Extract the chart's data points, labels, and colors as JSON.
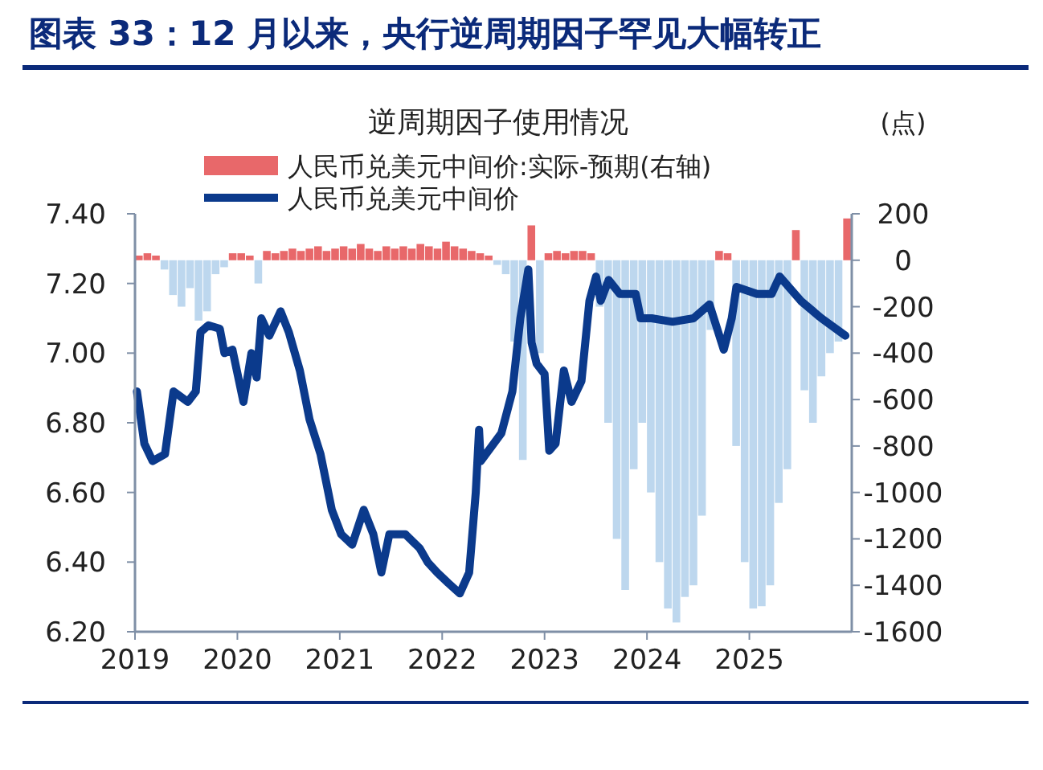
{
  "chart_data": {
    "type": "line",
    "title": "图表 33：12 月以来，央行逆周期因子罕见大幅转正",
    "subtitle": "逆周期因子使用情况",
    "y2label": "(点)",
    "legend": "top",
    "xlim": [
      "2019-01-01",
      "2026-01-01"
    ],
    "xticks": [
      {
        "value": "2019",
        "label": "2019"
      },
      {
        "value": "2020",
        "label": "2020"
      },
      {
        "value": "2021",
        "label": "2021"
      },
      {
        "value": "2022",
        "label": "2022"
      },
      {
        "value": "2023",
        "label": "2023"
      },
      {
        "value": "2024",
        "label": "2024"
      },
      {
        "value": "2025",
        "label": "2025"
      }
    ],
    "ylim": [
      6.2,
      7.4
    ],
    "yticks": [
      {
        "value": 6.2,
        "label": "6.20"
      },
      {
        "value": 6.4,
        "label": "6.40"
      },
      {
        "value": 6.6,
        "label": "6.60"
      },
      {
        "value": 6.8,
        "label": "6.80"
      },
      {
        "value": 7.0,
        "label": "7.00"
      },
      {
        "value": 7.2,
        "label": "7.20"
      },
      {
        "value": 7.4,
        "label": "7.40"
      }
    ],
    "y2lim": [
      -1600,
      200
    ],
    "y2ticks": [
      200,
      0,
      -200,
      -400,
      -600,
      -800,
      -1000,
      -1200,
      -1400,
      -1600
    ],
    "series": [
      {
        "name": "人民币兑美元中间价:实际-预期(右轴)",
        "type": "bar",
        "axis": "y2",
        "color": "#e8686a",
        "x": [
          "2019-01",
          "2019-02",
          "2019-03",
          "2019-04",
          "2019-05",
          "2019-06",
          "2019-07",
          "2019-08",
          "2019-09",
          "2019-10",
          "2019-11",
          "2019-12",
          "2020-01",
          "2020-02",
          "2020-03",
          "2020-04",
          "2020-05",
          "2020-06",
          "2020-07",
          "2020-08",
          "2020-09",
          "2020-10",
          "2020-11",
          "2020-12",
          "2021-01",
          "2021-02",
          "2021-03",
          "2021-04",
          "2021-05",
          "2021-06",
          "2021-07",
          "2021-08",
          "2021-09",
          "2021-10",
          "2021-11",
          "2021-12",
          "2022-01",
          "2022-02",
          "2022-03",
          "2022-04",
          "2022-05",
          "2022-06",
          "2022-07",
          "2022-08",
          "2022-09",
          "2022-10",
          "2022-11",
          "2022-12",
          "2023-01",
          "2023-02",
          "2023-03",
          "2023-04",
          "2023-05",
          "2023-06",
          "2023-07",
          "2023-08",
          "2023-09",
          "2023-10",
          "2023-11",
          "2023-12",
          "2024-01",
          "2024-02",
          "2024-03",
          "2024-04",
          "2024-05",
          "2024-06",
          "2024-07",
          "2024-08",
          "2024-09",
          "2024-10",
          "2024-11",
          "2024-12",
          "2025-01",
          "2025-02",
          "2025-03",
          "2025-04",
          "2025-05",
          "2025-06",
          "2025-07",
          "2025-08",
          "2025-09",
          "2025-10",
          "2025-11",
          "2025-12"
        ],
        "values": [
          20,
          30,
          20,
          -40,
          -150,
          -200,
          -120,
          -260,
          -220,
          -60,
          -30,
          30,
          30,
          20,
          -100,
          40,
          30,
          40,
          50,
          40,
          50,
          60,
          40,
          50,
          60,
          50,
          70,
          50,
          40,
          60,
          50,
          60,
          50,
          70,
          60,
          50,
          80,
          60,
          50,
          40,
          30,
          20,
          -20,
          -60,
          -350,
          -860,
          150,
          -400,
          30,
          40,
          30,
          40,
          40,
          30,
          -200,
          -700,
          -1200,
          -1420,
          -900,
          -700,
          -1000,
          -1300,
          -1500,
          -1560,
          -1450,
          -1400,
          -1100,
          -300,
          40,
          30,
          -800,
          -1300,
          -1500,
          -1490,
          -1400,
          -1045,
          -900,
          130,
          -560,
          -700,
          -500,
          -400,
          -350,
          180
        ],
        "colors": [
          "#e8686a",
          "#e8686a",
          "#e8686a",
          "#bdd7ee",
          "#bdd7ee",
          "#bdd7ee",
          "#bdd7ee",
          "#bdd7ee",
          "#bdd7ee",
          "#bdd7ee",
          "#bdd7ee",
          "#e8686a",
          "#e8686a",
          "#e8686a",
          "#bdd7ee",
          "#e8686a",
          "#e8686a",
          "#e8686a",
          "#e8686a",
          "#e8686a",
          "#e8686a",
          "#e8686a",
          "#e8686a",
          "#e8686a",
          "#e8686a",
          "#e8686a",
          "#e8686a",
          "#e8686a",
          "#e8686a",
          "#e8686a",
          "#e8686a",
          "#e8686a",
          "#e8686a",
          "#e8686a",
          "#e8686a",
          "#e8686a",
          "#e8686a",
          "#e8686a",
          "#e8686a",
          "#e8686a",
          "#e8686a",
          "#e8686a",
          "#bdd7ee",
          "#bdd7ee",
          "#bdd7ee",
          "#bdd7ee",
          "#e8686a",
          "#bdd7ee",
          "#e8686a",
          "#e8686a",
          "#e8686a",
          "#e8686a",
          "#e8686a",
          "#e8686a",
          "#bdd7ee",
          "#bdd7ee",
          "#bdd7ee",
          "#bdd7ee",
          "#bdd7ee",
          "#bdd7ee",
          "#bdd7ee",
          "#bdd7ee",
          "#bdd7ee",
          "#bdd7ee",
          "#bdd7ee",
          "#bdd7ee",
          "#bdd7ee",
          "#bdd7ee",
          "#e8686a",
          "#e8686a",
          "#bdd7ee",
          "#bdd7ee",
          "#bdd7ee",
          "#bdd7ee",
          "#bdd7ee",
          "#bdd7ee",
          "#bdd7ee",
          "#e8686a",
          "#bdd7ee",
          "#bdd7ee",
          "#bdd7ee",
          "#bdd7ee",
          "#bdd7ee",
          "#e8686a"
        ]
      },
      {
        "name": "人民币兑美元中间价",
        "color": "#0b3a8c",
        "x": [
          "2019-01-08",
          "2019-02-04",
          "2019-03-03",
          "2019-04-17",
          "2019-05-17",
          "2019-07-07",
          "2019-08-05",
          "2019-08-22",
          "2019-09-20",
          "2019-10-30",
          "2019-11-16",
          "2019-12-14",
          "2020-01-23",
          "2020-02-21",
          "2020-03-09",
          "2020-03-26",
          "2020-04-24",
          "2020-06-03",
          "2020-07-02",
          "2020-08-11",
          "2020-09-15",
          "2020-10-24",
          "2020-12-03",
          "2021-01-06",
          "2021-02-15",
          "2021-03-26",
          "2021-04-30",
          "2021-05-28",
          "2021-06-26",
          "2021-08-22",
          "2021-10-12",
          "2021-11-10",
          "2021-12-14",
          "2022-01-23",
          "2022-03-03",
          "2022-04-06",
          "2022-04-30",
          "2022-05-11",
          "2022-05-17",
          "2022-07-30",
          "2022-09-08",
          "2022-10-06",
          "2022-11-04",
          "2022-11-16",
          "2022-12-03",
          "2023-01-01",
          "2023-01-18",
          "2023-02-10",
          "2023-03-09",
          "2023-04-06",
          "2023-05-11",
          "2023-06-09",
          "2023-07-02",
          "2023-07-19",
          "2023-08-17",
          "2023-09-26",
          "2023-11-22",
          "2023-12-09",
          "2024-01-18",
          "2024-04-01",
          "2024-06-15",
          "2024-08-11",
          "2024-10-01",
          "2024-10-30",
          "2024-11-16",
          "2025-01-29",
          "2025-03-20",
          "2025-04-18",
          "2025-07-02",
          "2025-09-15",
          "2025-12-09"
        ],
        "values": [
          6.89,
          6.74,
          6.69,
          6.71,
          6.89,
          6.86,
          6.89,
          7.06,
          7.08,
          7.07,
          7.0,
          7.01,
          6.86,
          7.0,
          6.93,
          7.1,
          7.05,
          7.12,
          7.06,
          6.95,
          6.81,
          6.71,
          6.55,
          6.48,
          6.45,
          6.55,
          6.48,
          6.37,
          6.48,
          6.48,
          6.44,
          6.4,
          6.37,
          6.34,
          6.31,
          6.37,
          6.6,
          6.78,
          6.69,
          6.77,
          6.89,
          7.1,
          7.24,
          7.03,
          6.97,
          6.94,
          6.72,
          6.74,
          6.95,
          6.86,
          6.92,
          7.15,
          7.22,
          7.15,
          7.21,
          7.17,
          7.17,
          7.1,
          7.1,
          7.09,
          7.1,
          7.14,
          7.01,
          7.1,
          7.19,
          7.17,
          7.17,
          7.22,
          7.15,
          7.1,
          7.05
        ]
      }
    ]
  }
}
